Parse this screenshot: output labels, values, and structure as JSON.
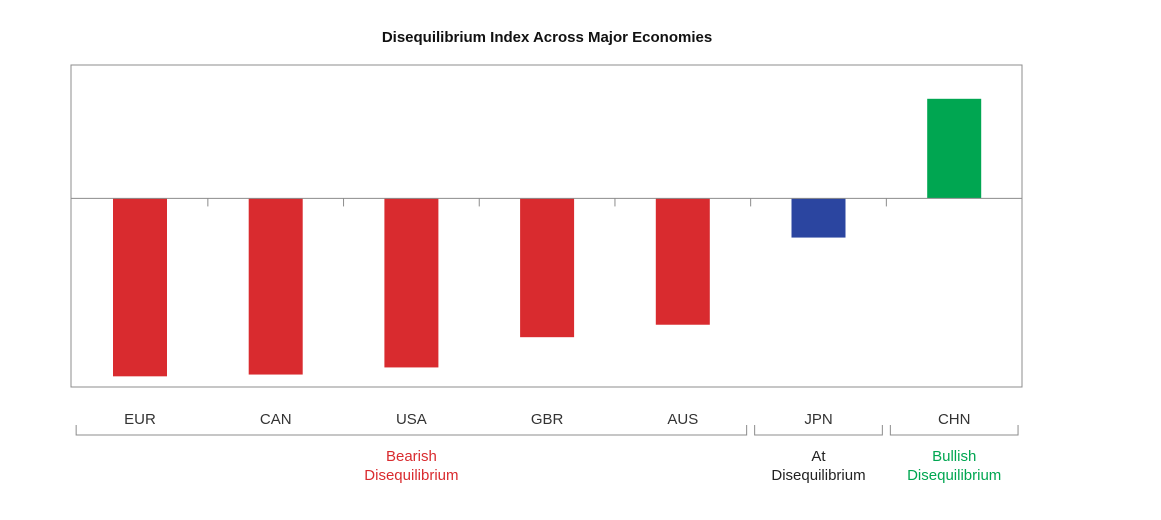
{
  "chart_data": {
    "type": "bar",
    "title": "Disequilibrium Index Across Major Economies",
    "categories": [
      "EUR",
      "CAN",
      "USA",
      "GBR",
      "AUS",
      "JPN",
      "CHN"
    ],
    "values": [
      -1.0,
      -0.99,
      -0.95,
      -0.78,
      -0.71,
      -0.22,
      0.56
    ],
    "bar_colors": [
      "#d92b2f",
      "#d92b2f",
      "#d92b2f",
      "#d92b2f",
      "#d92b2f",
      "#2b45a0",
      "#00a651"
    ],
    "ylim": [
      -1.06,
      0.75
    ],
    "y_axis_labels_shown": false,
    "grid": false,
    "groups": [
      {
        "label_lines": [
          "Bearish",
          "Disequilibrium"
        ],
        "color": "#d92b2f",
        "start": 0,
        "end": 4
      },
      {
        "label_lines": [
          "At",
          "Disequilibrium"
        ],
        "color": "#222222",
        "start": 5,
        "end": 5
      },
      {
        "label_lines": [
          "Bullish",
          "Disequilibrium"
        ],
        "color": "#00a651",
        "start": 6,
        "end": 6
      }
    ]
  }
}
